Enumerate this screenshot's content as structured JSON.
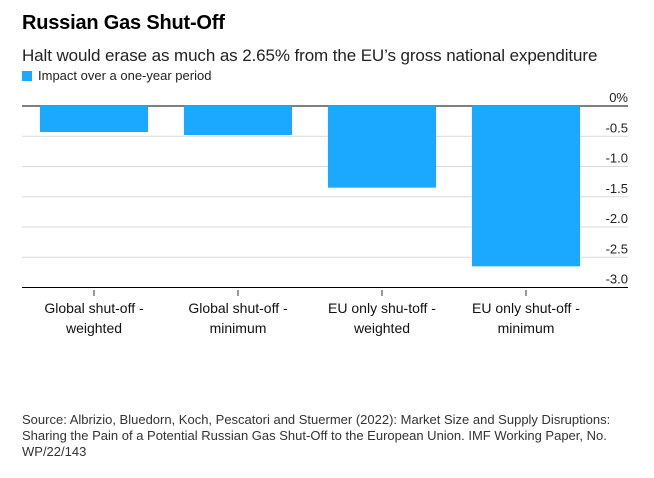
{
  "title": "Russian Gas Shut-Off",
  "subtitle": "Halt would erase as much as 2.65% from the EU’s gross national expenditure",
  "legend_label": "Impact over a one-year period",
  "source": "Source: Albrizio, Bluedorn, Koch, Pescatori and Stuermer (2022): Market Size and Supply Disruptions: Sharing the Pain of a Potential Russian Gas Shut-Off to the European Union. IMF Working Paper, No. WP/22/143",
  "colors": {
    "bar": "#1aa9ff",
    "grid": "#d9d9d9",
    "axis": "#000000"
  },
  "chart_data": {
    "type": "bar",
    "categories": [
      [
        "Global shut-off -",
        "weighted"
      ],
      [
        "Global shut-off -",
        "minimum"
      ],
      [
        "EU only shu-toff -",
        "weighted"
      ],
      [
        "EU only shut-off -",
        "minimum"
      ]
    ],
    "series": [
      {
        "name": "Impact over a one-year period",
        "values": [
          -0.43,
          -0.48,
          -1.35,
          -2.65
        ]
      }
    ],
    "yticks": [
      0,
      -0.5,
      -1.0,
      -1.5,
      -2.0,
      -2.5,
      -3.0
    ],
    "ytick_labels": [
      "0%",
      "-0.5",
      "-1.0",
      "-1.5",
      "-2.0",
      "-2.5",
      "-3.0"
    ],
    "ylim": [
      -3.0,
      0
    ],
    "yaxis_position": "right",
    "grid": true
  }
}
